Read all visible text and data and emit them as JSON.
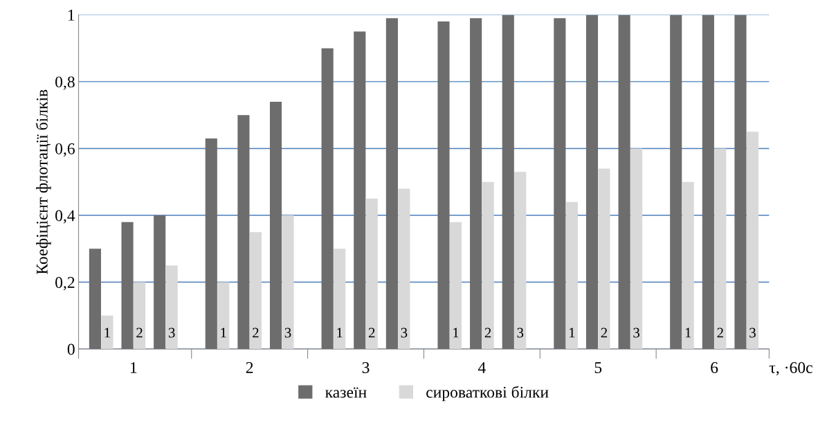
{
  "chart_data": {
    "type": "bar",
    "ylabel": "Коефіцієнт флотації білків",
    "xlabel": "τ, ·60с",
    "categories": [
      "1",
      "2",
      "3",
      "1",
      "2",
      "3",
      "1",
      "2",
      "3",
      "1",
      "2",
      "3",
      "1",
      "2",
      "3",
      "1",
      "2",
      "3"
    ],
    "annotations": [
      "1",
      "2",
      "3",
      "4",
      "5",
      "6"
    ],
    "series": [
      {
        "name": "казеїн",
        "color": "#6d6d6d",
        "values": [
          0.3,
          0.38,
          0.4,
          0.63,
          0.7,
          0.74,
          0.9,
          0.95,
          0.99,
          0.98,
          0.99,
          1.0,
          0.99,
          1.0,
          1.0,
          1.0,
          1.0,
          1.0
        ]
      },
      {
        "name": "сироваткові білки",
        "color": "#d9d9d9",
        "values": [
          0.1,
          0.2,
          0.25,
          0.2,
          0.35,
          0.4,
          0.3,
          0.45,
          0.48,
          0.38,
          0.5,
          0.53,
          0.44,
          0.54,
          0.6,
          0.5,
          0.6,
          0.65
        ]
      }
    ],
    "ylim": [
      0,
      1
    ],
    "yticks": [
      0,
      {
        "value": 0.2,
        "label": "0,2"
      },
      {
        "value": 0.4,
        "label": "0,4"
      },
      {
        "value": 0.6,
        "label": "0,6"
      },
      {
        "value": 0.8,
        "label": "0,8"
      },
      1
    ],
    "grid": "y",
    "legend": "bottom"
  }
}
